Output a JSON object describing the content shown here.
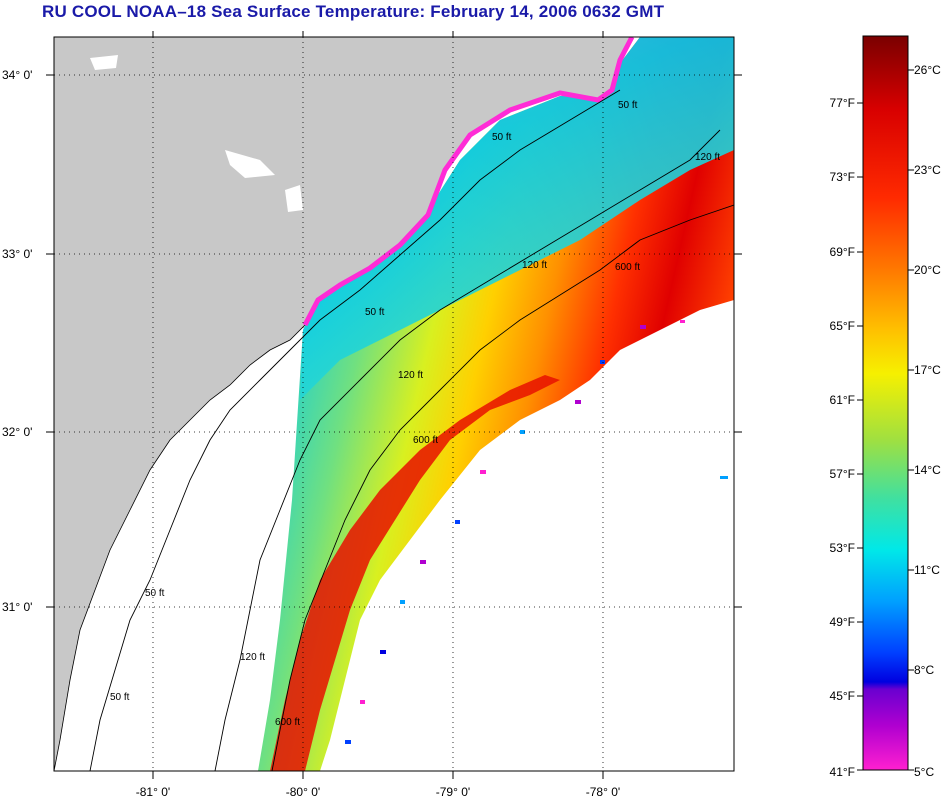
{
  "title": "RU COOL  NOAA–18  Sea Surface Temperature:  February 14, 2006 0632 GMT",
  "map": {
    "lat_labels": [
      "34° 0'",
      "33° 0'",
      "32° 0'",
      "31° 0'"
    ],
    "lon_labels": [
      "-81° 0'",
      "-80° 0'",
      "-79° 0'",
      "-78° 0'"
    ],
    "contour_labels": [
      "50 ft",
      "120 ft",
      "600 ft"
    ],
    "land_color": "#c8c8c8",
    "coast_color": "#ff2bd6",
    "grid": "dotted"
  },
  "colorbar": {
    "fahrenheit_labels": [
      "77°F",
      "73°F",
      "69°F",
      "65°F",
      "61°F",
      "57°F",
      "53°F",
      "49°F",
      "45°F",
      "41°F"
    ],
    "celsius_labels": [
      "26°C",
      "23°C",
      "20°C",
      "17°C",
      "14°C",
      "11°C",
      "8°C",
      "5°C"
    ],
    "colors": [
      "#7a0000",
      "#d80000",
      "#ff2a00",
      "#ff7a00",
      "#ffc000",
      "#f6f000",
      "#a0e040",
      "#40e0a0",
      "#00e8e8",
      "#00a0ff",
      "#0040ff",
      "#0000e0",
      "#6a00d0",
      "#b000d0",
      "#ff20d0"
    ]
  }
}
